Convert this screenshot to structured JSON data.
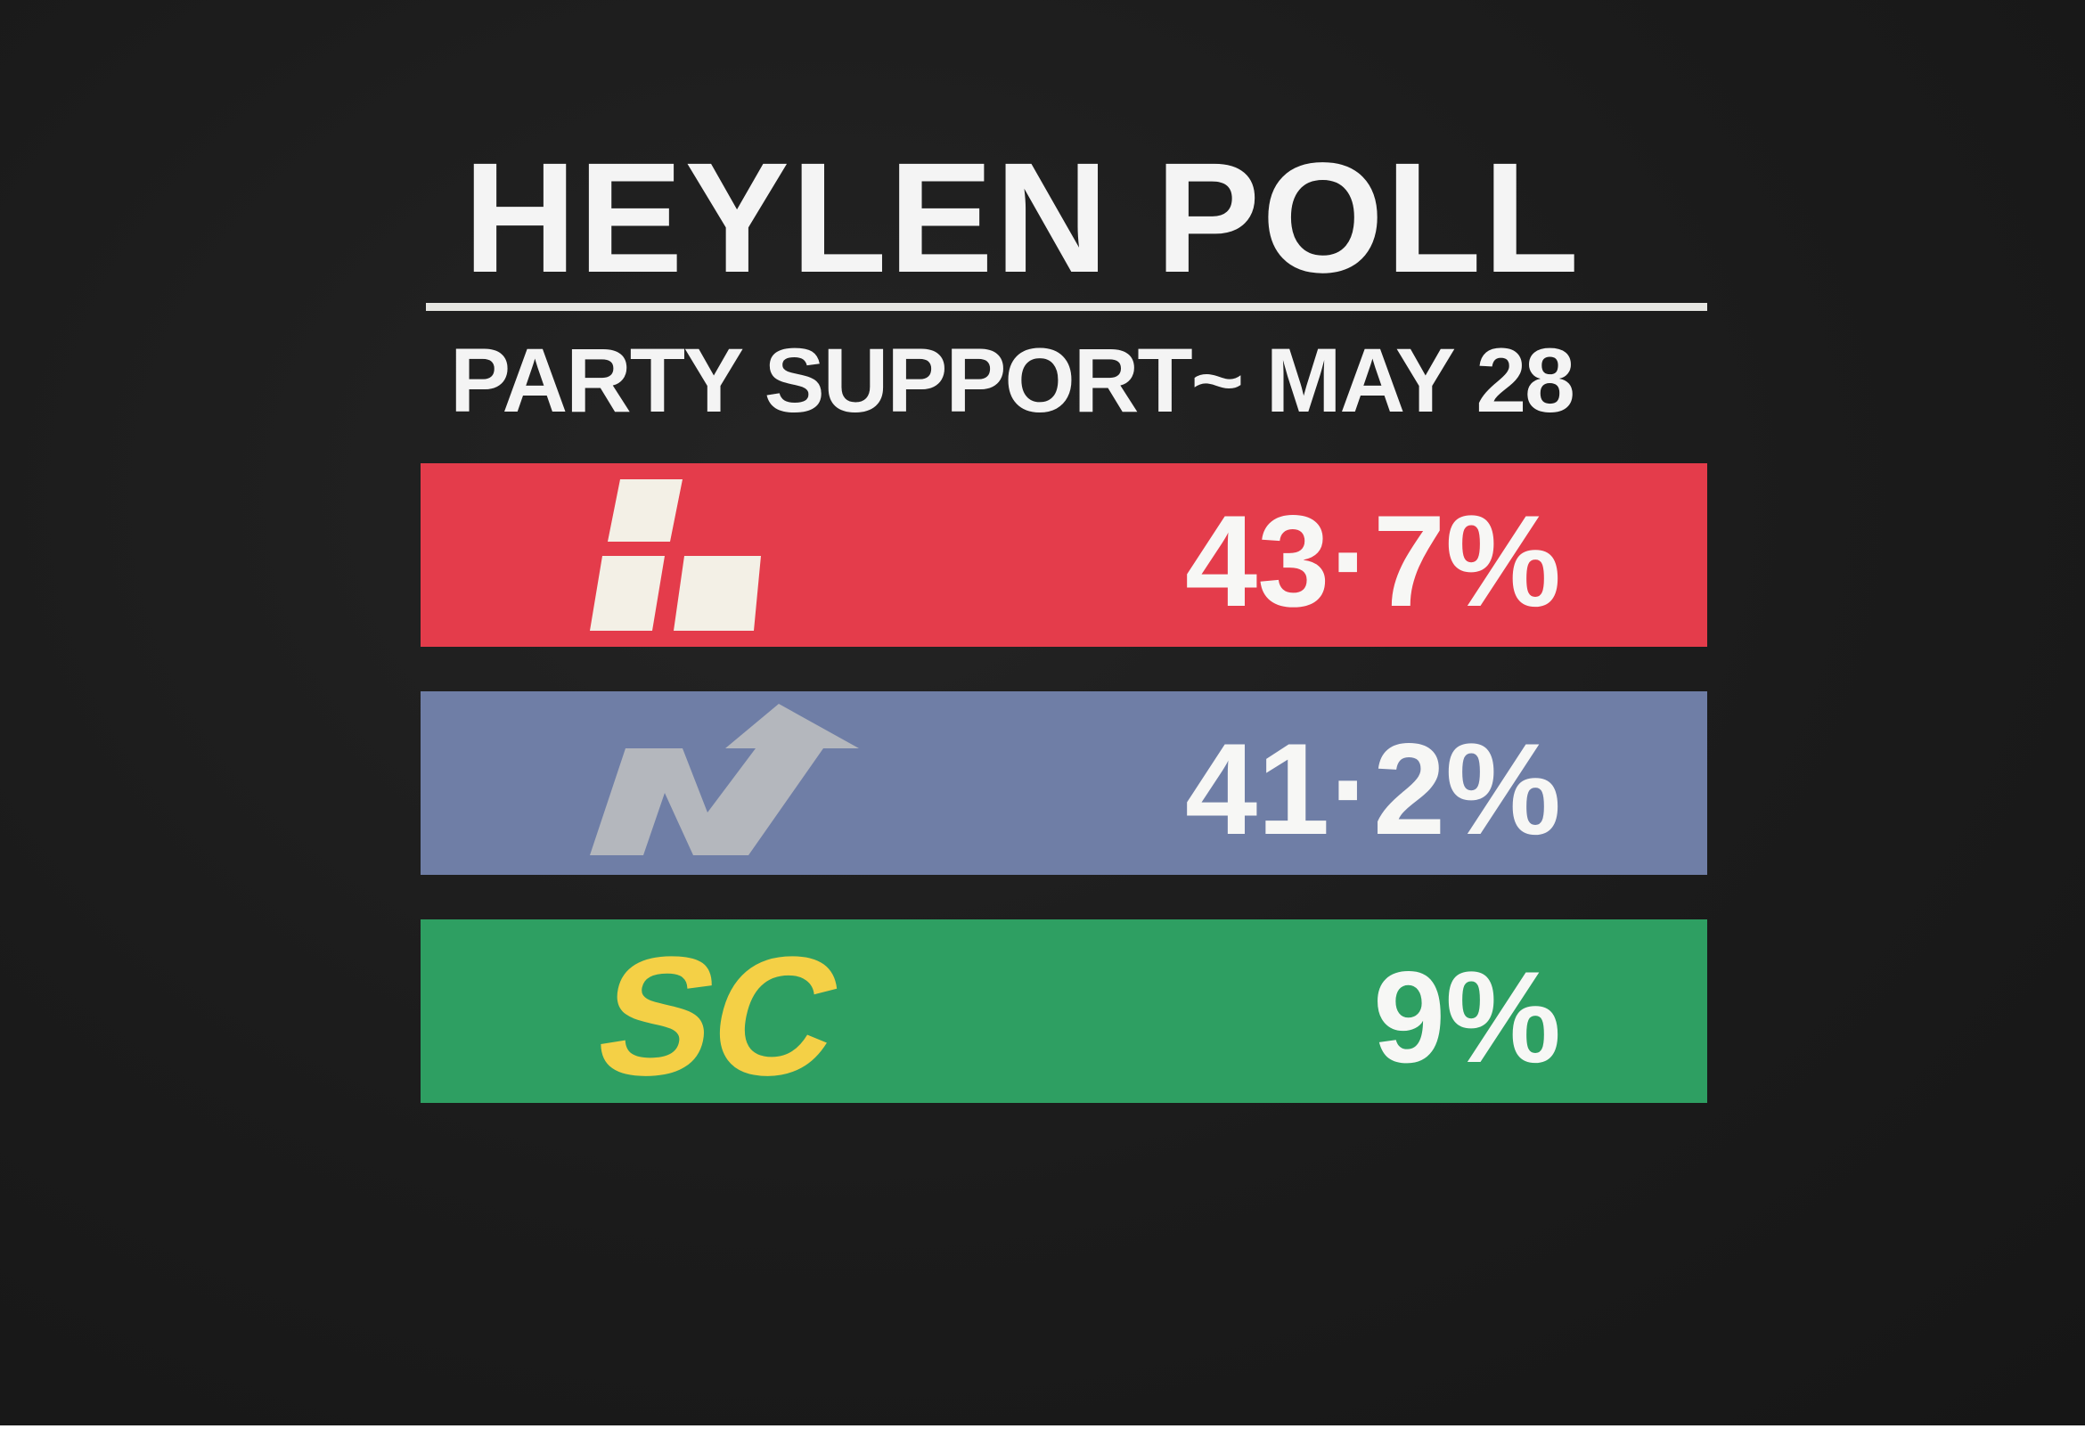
{
  "title": "HEYLEN POLL",
  "subtitle": "PARTY SUPPORT~ MAY 28",
  "chart_data": {
    "type": "table",
    "title": "HEYLEN POLL",
    "subtitle": "PARTY SUPPORT~ MAY 28",
    "rows": [
      {
        "value": 43.7,
        "label": "43·7%",
        "logo": "labour-party-logo",
        "color": "#e43c4b",
        "logo_color": "#f3f0e6"
      },
      {
        "value": 41.2,
        "label": "41·2%",
        "logo": "national-party-logo",
        "color": "#6f7ea6",
        "logo_color": "#b4b7bd"
      },
      {
        "value": 9,
        "label": "9%",
        "logo": "social-credit-logo",
        "logo_text": "SC",
        "color": "#2e9f62",
        "logo_color": "#f4d046"
      }
    ]
  }
}
